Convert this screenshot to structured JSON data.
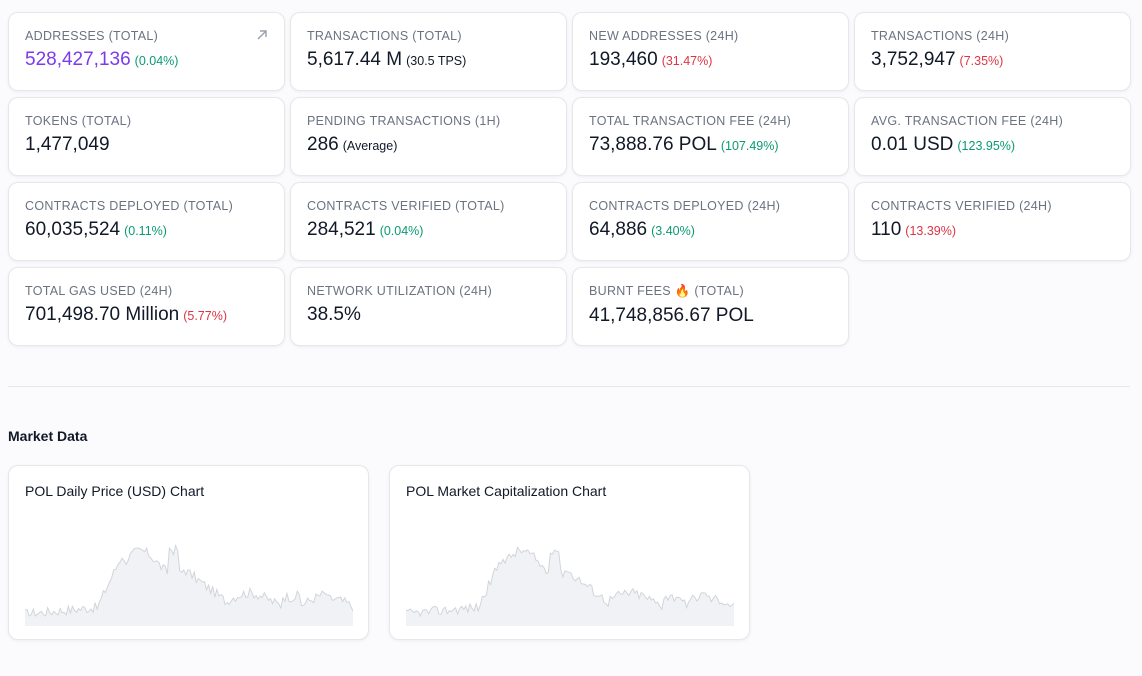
{
  "stats": [
    {
      "label": "ADDRESSES (TOTAL)",
      "value": "528,427,136",
      "change": "(0.04%)",
      "change_dir": "up",
      "accent": true,
      "link_icon": "external-arrow-icon"
    },
    {
      "label": "TRANSACTIONS (TOTAL)",
      "value": "5,617.44 M",
      "change": "(30.5 TPS)",
      "change_dir": "neutral"
    },
    {
      "label": "NEW ADDRESSES (24H)",
      "value": "193,460",
      "change": "(31.47%)",
      "change_dir": "down"
    },
    {
      "label": "TRANSACTIONS (24H)",
      "value": "3,752,947",
      "change": "(7.35%)",
      "change_dir": "down"
    },
    {
      "label": "TOKENS (TOTAL)",
      "value": "1,477,049",
      "change": "",
      "change_dir": "neutral"
    },
    {
      "label": "PENDING TRANSACTIONS (1H)",
      "value": "286",
      "change": "(Average)",
      "change_dir": "neutral"
    },
    {
      "label": "TOTAL TRANSACTION FEE (24H)",
      "value": "73,888.76 POL",
      "change": "(107.49%)",
      "change_dir": "up"
    },
    {
      "label": "AVG. TRANSACTION FEE (24H)",
      "value": "0.01 USD",
      "change": "(123.95%)",
      "change_dir": "up"
    },
    {
      "label": "CONTRACTS DEPLOYED (TOTAL)",
      "value": "60,035,524",
      "change": "(0.11%)",
      "change_dir": "up"
    },
    {
      "label": "CONTRACTS VERIFIED (TOTAL)",
      "value": "284,521",
      "change": "(0.04%)",
      "change_dir": "up"
    },
    {
      "label": "CONTRACTS DEPLOYED (24H)",
      "value": "64,886",
      "change": "(3.40%)",
      "change_dir": "up"
    },
    {
      "label": "CONTRACTS VERIFIED (24H)",
      "value": "110",
      "change": "(13.39%)",
      "change_dir": "down"
    },
    {
      "label": "TOTAL GAS USED (24H)",
      "value": "701,498.70 Million",
      "change": "(5.77%)",
      "change_dir": "down"
    },
    {
      "label": "NETWORK UTILIZATION (24H)",
      "value": "38.5%",
      "change": "",
      "change_dir": "neutral"
    },
    {
      "label": "BURNT FEES 🔥 (TOTAL)",
      "value": "41,748,856.67 POL",
      "change": "",
      "change_dir": "neutral"
    }
  ],
  "market": {
    "title": "Market Data",
    "charts": [
      {
        "title": "POL Daily Price (USD) Chart"
      },
      {
        "title": "POL Market Capitalization Chart"
      }
    ]
  },
  "colors": {
    "accent": "#7c3aed",
    "up": "#0a9b72",
    "down": "#dc3545",
    "spark_line": "#d1d5db"
  }
}
